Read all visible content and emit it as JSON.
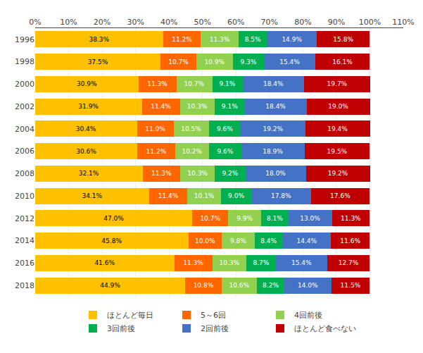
{
  "chart_data": {
    "type": "bar",
    "orientation": "horizontal",
    "stacked": true,
    "data_labels": true,
    "grid": true,
    "legend": "bottom",
    "categories": [
      "1996",
      "1998",
      "2000",
      "2002",
      "2004",
      "2006",
      "2008",
      "2010",
      "2012",
      "2014",
      "2016",
      "2018"
    ],
    "xlim": [
      0,
      110
    ],
    "xticks": [
      {
        "value": 0,
        "label": "0%"
      },
      {
        "value": 10,
        "label": "10%"
      },
      {
        "value": 20,
        "label": "20%"
      },
      {
        "value": 30,
        "label": "30%"
      },
      {
        "value": 40,
        "label": "40%"
      },
      {
        "value": 50,
        "label": "50%"
      },
      {
        "value": 60,
        "label": "60%"
      },
      {
        "value": 70,
        "label": "70%"
      },
      {
        "value": 80,
        "label": "80%"
      },
      {
        "value": 90,
        "label": "90%"
      },
      {
        "value": 100,
        "label": "100%"
      },
      {
        "value": 110,
        "label": "110%"
      }
    ],
    "series": [
      {
        "name": "ほとんど毎日",
        "color": "#FFC000",
        "values": [
          38.3,
          37.5,
          30.9,
          31.9,
          30.4,
          30.6,
          32.1,
          34.1,
          47.0,
          45.8,
          41.6,
          44.9
        ],
        "value_labels": [
          "38.3%",
          "37.5%",
          "30.9%",
          "31.9%",
          "30.4%",
          "30.6%",
          "32.1%",
          "34.1%",
          "47.0%",
          "45.8%",
          "41.6%",
          "44.9%"
        ]
      },
      {
        "name": "5～6回",
        "color": "#FF6600",
        "values": [
          11.2,
          10.7,
          11.3,
          11.4,
          11.0,
          11.2,
          11.3,
          11.4,
          10.7,
          10.0,
          11.3,
          10.8
        ],
        "value_labels": [
          "11.2%",
          "10.7%",
          "11.3%",
          "11.4%",
          "11.0%",
          "11.2%",
          "11.3%",
          "11.4%",
          "10.7%",
          "10.0%",
          "11.3%",
          "10.8%"
        ]
      },
      {
        "name": "4回前後",
        "color": "#92D050",
        "values": [
          11.3,
          10.9,
          10.7,
          10.3,
          10.5,
          10.2,
          10.3,
          10.1,
          9.9,
          9.8,
          10.3,
          10.6
        ],
        "value_labels": [
          "11.3%",
          "10.9%",
          "10.7%",
          "10.3%",
          "10.5%",
          "10.2%",
          "10.3%",
          "10.1%",
          "9.9%",
          "9.8%",
          "10.3%",
          "10.6%"
        ]
      },
      {
        "name": "3回前後",
        "color": "#00B050",
        "values": [
          8.5,
          9.3,
          9.1,
          9.1,
          9.6,
          9.6,
          9.2,
          9.0,
          8.1,
          8.4,
          8.7,
          8.2
        ],
        "value_labels": [
          "8.5%",
          "9.3%",
          "9.1%",
          "9.1%",
          "9.6%",
          "9.6%",
          "9.2%",
          "9.0%",
          "8.1%",
          "8.4%",
          "8.7%",
          "8.2%"
        ]
      },
      {
        "name": "2回前後",
        "color": "#4472C4",
        "values": [
          14.9,
          15.4,
          18.4,
          18.4,
          19.2,
          18.9,
          18.0,
          17.8,
          13.0,
          14.4,
          15.4,
          14.0
        ],
        "value_labels": [
          "14.9%",
          "15.4%",
          "18.4%",
          "18.4%",
          "19.2%",
          "18.9%",
          "18.0%",
          "17.8%",
          "13.0%",
          "14.4%",
          "15.4%",
          "14.0%"
        ]
      },
      {
        "name": "ほとんど食べない",
        "color": "#C00000",
        "values": [
          15.8,
          16.1,
          19.7,
          19.0,
          19.4,
          19.5,
          19.2,
          17.6,
          11.3,
          11.6,
          12.7,
          11.5
        ],
        "value_labels": [
          "15.8%",
          "16.1%",
          "19.7%",
          "19.0%",
          "19.4%",
          "19.5%",
          "19.2%",
          "17.6%",
          "11.3%",
          "11.6%",
          "12.7%",
          "11.5%"
        ]
      }
    ]
  }
}
